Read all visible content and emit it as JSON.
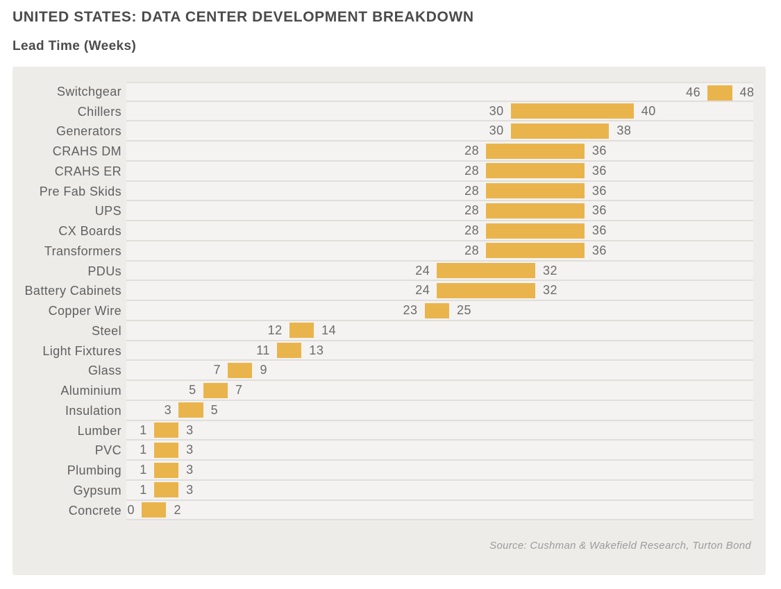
{
  "header": {
    "title": "UNITED STATES: DATA CENTER DEVELOPMENT BREAKDOWN",
    "subtitle": "Lead Time (Weeks)"
  },
  "source": "Source: Cushman & Wakefield Research, Turton Bond",
  "colors": {
    "bar": "#eab44c",
    "panel_bg": "#edece9",
    "row_band_bg": "#f4f3f1",
    "gridline": "#e0dedb",
    "title_text": "#4b4b4b",
    "category_text": "#5f5f5f",
    "value_text": "#6b6b6b",
    "source_text": "#9b9b9b"
  },
  "chart_data": {
    "type": "bar",
    "subtype": "horizontal-range-bars",
    "title": "UNITED STATES: DATA CENTER DEVELOPMENT BREAKDOWN",
    "value_axis_label": "Lead Time (Weeks)",
    "xlim": [
      0,
      50
    ],
    "grid": "horizontal row separators only, no axis ticks shown",
    "legend_position": "none",
    "value_labels": "low value left of bar, high value right of bar",
    "categories": [
      "Switchgear",
      "Chillers",
      "Generators",
      "CRAHS DM",
      "CRAHS ER",
      "Pre Fab Skids",
      "UPS",
      "CX Boards",
      "Transformers",
      "PDUs",
      "Battery Cabinets",
      "Copper Wire",
      "Steel",
      "Light Fixtures",
      "Glass",
      "Aluminium",
      "Insulation",
      "Lumber",
      "PVC",
      "Plumbing",
      "Gypsum",
      "Concrete"
    ],
    "rows": [
      {
        "label": "Switchgear",
        "low": 46,
        "high": 48
      },
      {
        "label": "Chillers",
        "low": 30,
        "high": 40
      },
      {
        "label": "Generators",
        "low": 30,
        "high": 38
      },
      {
        "label": "CRAHS DM",
        "low": 28,
        "high": 36
      },
      {
        "label": "CRAHS ER",
        "low": 28,
        "high": 36
      },
      {
        "label": "Pre Fab Skids",
        "low": 28,
        "high": 36
      },
      {
        "label": "UPS",
        "low": 28,
        "high": 36
      },
      {
        "label": "CX Boards",
        "low": 28,
        "high": 36
      },
      {
        "label": "Transformers",
        "low": 28,
        "high": 36
      },
      {
        "label": "PDUs",
        "low": 24,
        "high": 32
      },
      {
        "label": "Battery Cabinets",
        "low": 24,
        "high": 32
      },
      {
        "label": "Copper Wire",
        "low": 23,
        "high": 25
      },
      {
        "label": "Steel",
        "low": 12,
        "high": 14
      },
      {
        "label": "Light Fixtures",
        "low": 11,
        "high": 13
      },
      {
        "label": "Glass",
        "low": 7,
        "high": 9
      },
      {
        "label": "Aluminium",
        "low": 5,
        "high": 7
      },
      {
        "label": "Insulation",
        "low": 3,
        "high": 5
      },
      {
        "label": "Lumber",
        "low": 1,
        "high": 3
      },
      {
        "label": "PVC",
        "low": 1,
        "high": 3
      },
      {
        "label": "Plumbing",
        "low": 1,
        "high": 3
      },
      {
        "label": "Gypsum",
        "low": 1,
        "high": 3
      },
      {
        "label": "Concrete",
        "low": 0,
        "high": 2
      }
    ]
  }
}
